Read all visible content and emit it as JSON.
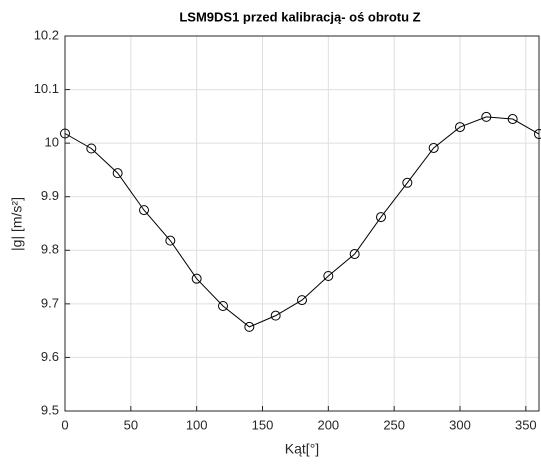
{
  "chart_data": {
    "type": "line",
    "title": "LSM9DS1 przed kalibracją- oś obrotu Z",
    "xlabel": "Kąt[°]",
    "ylabel": "|g| [m/s²]",
    "x": [
      0,
      20,
      40,
      60,
      80,
      100,
      120,
      140,
      160,
      180,
      200,
      220,
      240,
      260,
      280,
      300,
      320,
      340,
      360
    ],
    "series": [
      {
        "color": "#000000",
        "marker": "circle",
        "values": [
          10.018,
          9.99,
          9.944,
          9.875,
          9.818,
          9.747,
          9.696,
          9.657,
          9.678,
          9.707,
          9.752,
          9.793,
          9.862,
          9.926,
          9.991,
          10.03,
          10.049,
          10.045,
          10.017
        ]
      }
    ],
    "xlim": [
      0,
      360
    ],
    "xticks": [
      0,
      50,
      100,
      150,
      200,
      250,
      300,
      350
    ],
    "ylim": [
      9.5,
      10.2
    ],
    "yticks": [
      9.5,
      9.6,
      9.7,
      9.8,
      9.9,
      10,
      10.1,
      10.2
    ],
    "grid": true
  }
}
